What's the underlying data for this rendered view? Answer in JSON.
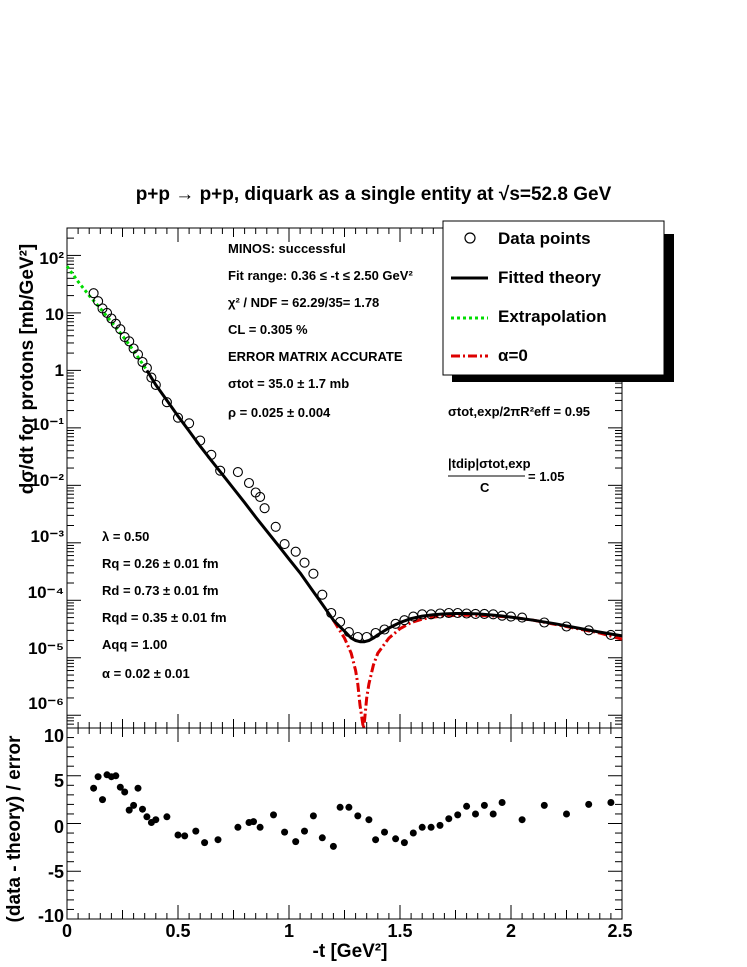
{
  "title": "p+p → p+p, diquark as a single entity at √s=52.8 GeV",
  "top_panel": {
    "ylabel": "dσ/dt for protons [mb/GeV²]",
    "y_tick_labels": [
      "10²",
      "10",
      "1",
      "10⁻¹",
      "10⁻²",
      "10⁻³",
      "10⁻⁴",
      "10⁻⁵",
      "10⁻⁶"
    ],
    "annotations_left_top": [
      "MINOS: successful",
      "Fit range: 0.36 ≤ -t ≤ 2.50 GeV²",
      "χ² / NDF = 62.29/35= 1.78",
      "CL = 0.305 %",
      "ERROR MATRIX ACCURATE",
      "σtot = 35.0 ±  1.7 mb",
      "ρ = 0.025 ± 0.004"
    ],
    "annotations_left_bottom": [
      "λ = 0.50",
      "Rq = 0.26 ± 0.01 fm",
      "Rd = 0.73 ± 0.01 fm",
      "Rqd = 0.35 ± 0.01 fm",
      "Aqq = 1.00",
      "α = 0.02 ± 0.01"
    ],
    "annotations_right": {
      "ratio1": "σtot,exp/2πR²eff = 0.95",
      "ratio2_numerator": "|tdip|σtot,exp",
      "ratio2_denominator": "C",
      "ratio2_value": "= 1.05"
    },
    "legend": [
      "Data points",
      "Fitted theory",
      "Extrapolation",
      "α=0"
    ]
  },
  "bottom_panel": {
    "ylabel": "(data - theory) / error",
    "y_tick_labels": [
      "10",
      "5",
      "0",
      "-5",
      "-10"
    ]
  },
  "x_tick_labels": [
    "0",
    "0.5",
    "1",
    "1.5",
    "2",
    "2.5"
  ],
  "xlabel": "-t [GeV²]",
  "colors": {
    "fit": "#000000",
    "extrapolation": "#00dd00",
    "alpha0": "#dd0000",
    "points": "#000000"
  },
  "chart_data": [
    {
      "type": "scatter",
      "panel": "top",
      "y_scale": "log",
      "xlim": [
        0,
        2.5
      ],
      "ylim": [
        6e-07,
        300
      ],
      "series": [
        {
          "name": "Data points",
          "kind": "points",
          "x": [
            0.12,
            0.14,
            0.16,
            0.18,
            0.2,
            0.22,
            0.24,
            0.26,
            0.28,
            0.3,
            0.32,
            0.34,
            0.36,
            0.38,
            0.4,
            0.45,
            0.5,
            0.55,
            0.6,
            0.65,
            0.69,
            0.77,
            0.82,
            0.85,
            0.87,
            0.89,
            0.94,
            0.98,
            1.03,
            1.07,
            1.11,
            1.15,
            1.19,
            1.23,
            1.27,
            1.31,
            1.35,
            1.39,
            1.43,
            1.48,
            1.52,
            1.56,
            1.6,
            1.64,
            1.68,
            1.72,
            1.76,
            1.8,
            1.84,
            1.88,
            1.92,
            1.96,
            2.0,
            2.05,
            2.15,
            2.25,
            2.35,
            2.45
          ],
          "y": [
            22,
            16,
            12,
            10,
            8,
            6.5,
            5.2,
            3.8,
            3.2,
            2.4,
            1.9,
            1.4,
            1.1,
            0.75,
            0.56,
            0.28,
            0.15,
            0.12,
            0.06,
            0.034,
            0.018,
            0.017,
            0.011,
            0.0075,
            0.0063,
            0.004,
            0.0019,
            0.00095,
            0.0007,
            0.00045,
            0.00029,
            0.000125,
            6e-05,
            4.2e-05,
            2.8e-05,
            2.3e-05,
            2.3e-05,
            2.7e-05,
            3.1e-05,
            3.9e-05,
            4.5e-05,
            5.2e-05,
            5.7e-05,
            5.7e-05,
            5.9e-05,
            6e-05,
            6e-05,
            5.9e-05,
            5.8e-05,
            5.8e-05,
            5.7e-05,
            5.4e-05,
            5.2e-05,
            5e-05,
            4.1e-05,
            3.5e-05,
            3e-05,
            2.5e-05
          ]
        },
        {
          "name": "Fitted theory",
          "kind": "line",
          "x": [
            0.36,
            0.4,
            0.45,
            0.5,
            0.55,
            0.6,
            0.65,
            0.7,
            0.75,
            0.8,
            0.85,
            0.9,
            0.95,
            1.0,
            1.05,
            1.1,
            1.15,
            1.2,
            1.25,
            1.28,
            1.3,
            1.32,
            1.34,
            1.36,
            1.38,
            1.4,
            1.45,
            1.5,
            1.55,
            1.6,
            1.65,
            1.7,
            1.75,
            1.8,
            1.85,
            1.9,
            1.95,
            2.0,
            2.1,
            2.2,
            2.3,
            2.4,
            2.5
          ],
          "y": [
            1.0,
            0.56,
            0.3,
            0.16,
            0.088,
            0.048,
            0.027,
            0.0155,
            0.0088,
            0.005,
            0.0028,
            0.0016,
            0.00092,
            0.00052,
            0.0003,
            0.00016,
            8.5e-05,
            4.5e-05,
            2.9e-05,
            2.2e-05,
            2e-05,
            1.9e-05,
            1.9e-05,
            2e-05,
            2.2e-05,
            2.5e-05,
            3.3e-05,
            4.1e-05,
            4.8e-05,
            5.3e-05,
            5.6e-05,
            5.8e-05,
            5.9e-05,
            5.9e-05,
            5.8e-05,
            5.6e-05,
            5.4e-05,
            5.1e-05,
            4.5e-05,
            3.9e-05,
            3.3e-05,
            2.8e-05,
            2.4e-05
          ]
        },
        {
          "name": "Extrapolation",
          "kind": "line",
          "x": [
            0.0,
            0.05,
            0.1,
            0.15,
            0.2,
            0.25,
            0.3,
            0.36
          ],
          "y": [
            65,
            35,
            20,
            12,
            7,
            4.0,
            2.2,
            1.0
          ]
        },
        {
          "name": "α=0",
          "kind": "line",
          "x": [
            1.2,
            1.25,
            1.28,
            1.3,
            1.31,
            1.32,
            1.33,
            1.335,
            1.34,
            1.35,
            1.36,
            1.38,
            1.4,
            1.45,
            1.5,
            1.55,
            1.6,
            1.65,
            1.7,
            1.8,
            1.9,
            2.0,
            2.1,
            2.2,
            2.3,
            2.4,
            2.5
          ],
          "y": [
            4.5e-05,
            2.2e-05,
            1.2e-05,
            6e-06,
            3.5e-06,
            1.5e-06,
            8e-07,
            6e-07,
            8e-07,
            2e-06,
            3.5e-06,
            7.5e-06,
            1.2e-05,
            2.2e-05,
            3.2e-05,
            4.1e-05,
            4.7e-05,
            5.1e-05,
            5.4e-05,
            5.5e-05,
            5.4e-05,
            5.1e-05,
            4.5e-05,
            3.8e-05,
            3.2e-05,
            2.7e-05,
            2.1e-05
          ]
        }
      ]
    },
    {
      "type": "scatter",
      "panel": "bottom",
      "xlim": [
        0,
        2.5
      ],
      "ylim": [
        -10,
        10
      ],
      "series": [
        {
          "kind": "points",
          "x": [
            0.12,
            0.14,
            0.16,
            0.18,
            0.2,
            0.22,
            0.24,
            0.26,
            0.28,
            0.3,
            0.32,
            0.34,
            0.36,
            0.38,
            0.4,
            0.45,
            0.5,
            0.53,
            0.58,
            0.62,
            0.68,
            0.77,
            0.82,
            0.84,
            0.87,
            0.93,
            0.98,
            1.03,
            1.07,
            1.11,
            1.15,
            1.2,
            1.23,
            1.27,
            1.31,
            1.36,
            1.39,
            1.43,
            1.48,
            1.52,
            1.56,
            1.6,
            1.64,
            1.68,
            1.72,
            1.76,
            1.8,
            1.84,
            1.88,
            1.92,
            1.96,
            2.05,
            2.15,
            2.25,
            2.35,
            2.45
          ],
          "y": [
            3.7,
            4.9,
            2.5,
            5.1,
            4.9,
            5.0,
            3.8,
            3.3,
            1.4,
            1.9,
            3.7,
            1.5,
            0.7,
            0.1,
            0.4,
            0.7,
            -1.2,
            -1.3,
            -0.8,
            -2.0,
            -1.7,
            -0.4,
            0.1,
            0.2,
            -0.4,
            0.9,
            -0.9,
            -1.9,
            -0.8,
            0.8,
            -1.5,
            -2.4,
            1.7,
            1.7,
            0.8,
            0.4,
            -1.7,
            -0.9,
            -1.6,
            -2.0,
            -1.0,
            -0.4,
            -0.4,
            -0.2,
            0.5,
            0.9,
            1.8,
            1.0,
            1.9,
            1.0,
            2.2,
            0.4,
            1.9,
            1.0,
            2.0,
            2.2
          ]
        }
      ]
    }
  ]
}
